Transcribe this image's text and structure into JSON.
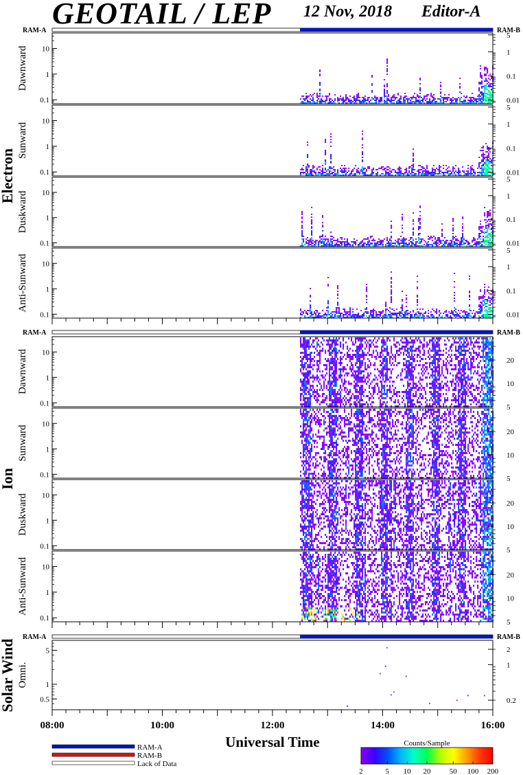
{
  "header": {
    "title": "GEOTAIL / LEP",
    "date": "12 Nov, 2018",
    "editor": "Editor-A"
  },
  "ram_labels": {
    "left": "RAM-A",
    "right": "RAM-B"
  },
  "groups": {
    "electron": "Electron",
    "ion": "Ion",
    "solar_wind": "Solar Wind"
  },
  "x_axis": {
    "label": "Universal Time",
    "ticks": [
      "08:00",
      "10:00",
      "12:00",
      "14:00",
      "16:00"
    ]
  },
  "legend": {
    "ram_a": "RAM-A",
    "ram_b": "RAM-B",
    "lack": "Lack of Data"
  },
  "colorbar": {
    "title": "Counts/Sample",
    "ticks": [
      "2",
      "5",
      "10",
      "20",
      "50",
      "100",
      "200"
    ]
  },
  "colors": {
    "ram_a": "#0014c8",
    "ram_b": "#dc1414",
    "lack": "#ffffff"
  },
  "chart_data": [
    {
      "type": "heatmap",
      "group": "Electron",
      "panel": "Dawnward",
      "left_ticks": [
        "10",
        "1",
        "0.1"
      ],
      "right_ticks": [
        "5",
        "1",
        "0.1",
        "0.01"
      ],
      "data_start": "12:30",
      "data_end": "16:00"
    },
    {
      "type": "heatmap",
      "group": "Electron",
      "panel": "Sunward",
      "left_ticks": [
        "10",
        "1",
        "0.1"
      ],
      "right_ticks": [
        "5",
        "1",
        "0.1",
        "0.01"
      ],
      "data_start": "12:30",
      "data_end": "16:00"
    },
    {
      "type": "heatmap",
      "group": "Electron",
      "panel": "Duskward",
      "left_ticks": [
        "10",
        "1",
        "0.1"
      ],
      "right_ticks": [
        "5",
        "1",
        "0.1",
        "0.01"
      ],
      "data_start": "12:30",
      "data_end": "16:00"
    },
    {
      "type": "heatmap",
      "group": "Electron",
      "panel": "Anti-Sunward",
      "left_ticks": [
        "10",
        "1",
        "0.1"
      ],
      "right_ticks": [
        "5",
        "1",
        "0.1",
        "0.01"
      ],
      "data_start": "12:30",
      "data_end": "16:00"
    },
    {
      "type": "heatmap",
      "group": "Ion",
      "panel": "Dawnward",
      "left_ticks": [
        "10",
        "1",
        "0.1"
      ],
      "right_ticks": [
        "20",
        "10",
        "5"
      ],
      "data_start": "12:30",
      "data_end": "16:00"
    },
    {
      "type": "heatmap",
      "group": "Ion",
      "panel": "Sunward",
      "left_ticks": [
        "10",
        "1",
        "0.1"
      ],
      "right_ticks": [
        "20",
        "10",
        "5"
      ],
      "data_start": "12:30",
      "data_end": "16:00"
    },
    {
      "type": "heatmap",
      "group": "Ion",
      "panel": "Duskward",
      "left_ticks": [
        "10",
        "1",
        "0.1"
      ],
      "right_ticks": [
        "20",
        "10",
        "5"
      ],
      "data_start": "12:30",
      "data_end": "16:00"
    },
    {
      "type": "heatmap",
      "group": "Ion",
      "panel": "Anti-Sunward",
      "left_ticks": [
        "10",
        "1",
        "0.1"
      ],
      "right_ticks": [
        "20",
        "10",
        "5"
      ],
      "data_start": "12:30",
      "data_end": "16:00"
    },
    {
      "type": "heatmap",
      "group": "Solar Wind",
      "panel": "Omni.",
      "left_ticks": [
        "5",
        "1",
        "0.5"
      ],
      "right_ticks": [
        "2",
        "1",
        "0.2"
      ],
      "data_start": "12:30",
      "data_end": "16:00"
    }
  ]
}
